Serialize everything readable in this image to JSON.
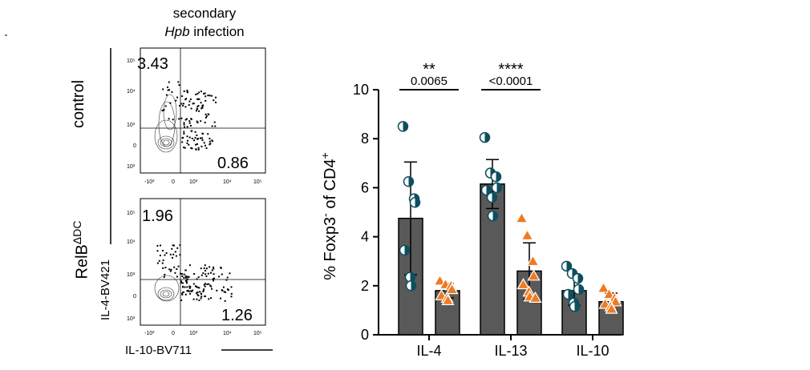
{
  "left_panel": {
    "header_line1": "secondary",
    "header_italic": "Hpb",
    "header_rest": " infection",
    "row_labels": {
      "control": "control",
      "relb_base": "RelB",
      "relb_sup": "ΔDC"
    },
    "y_axis_label": "IL-4-BV421",
    "x_axis_label": "IL-10-BV711",
    "plots": [
      {
        "name": "control",
        "upper_left": "3.43",
        "lower_right": "0.86",
        "y_ticks": [
          "10⁵",
          "10⁴",
          "10³",
          "0",
          "10³"
        ],
        "x_ticks": [
          "-10³",
          "0",
          "10³",
          "10⁴",
          "10⁵"
        ]
      },
      {
        "name": "relb",
        "upper_left": "1.96",
        "lower_right": "1.26",
        "y_ticks": [
          "10⁵",
          "10⁴",
          "10³",
          "0",
          "10³"
        ],
        "x_ticks": [
          "-10³",
          "0",
          "10³",
          "10⁴",
          "10⁵"
        ]
      }
    ]
  },
  "chart_data": {
    "type": "bar",
    "ylabel_base": "% Foxp3",
    "ylabel_sup1": "-",
    "ylabel_mid": " of CD4",
    "ylabel_sup2": "+",
    "ylim": [
      0,
      10
    ],
    "y_ticks": [
      0,
      2,
      4,
      6,
      8,
      10
    ],
    "categories": [
      "IL-4",
      "IL-13",
      "IL-10"
    ],
    "series": [
      {
        "name": "control",
        "marker": "half-filled circle",
        "color": "#0d4f5f",
        "means": [
          4.75,
          6.15,
          1.8
        ],
        "sd": [
          2.3,
          1.0,
          0.6
        ],
        "points": [
          [
            8.5,
            6.25,
            5.55,
            5.4,
            3.45,
            2.35,
            2.0
          ],
          [
            8.05,
            6.6,
            6.45,
            6.0,
            5.9,
            5.6,
            4.85
          ],
          [
            2.8,
            2.5,
            2.3,
            1.85,
            1.65,
            1.3,
            1.15
          ]
        ]
      },
      {
        "name": "RelBΔDC",
        "marker": "triangle",
        "color": "#f07a21",
        "means": [
          1.8,
          2.6,
          1.35
        ],
        "sd": [
          0.3,
          1.15,
          0.35
        ],
        "points": [
          [
            2.2,
            2.05,
            2.0,
            1.85,
            1.6,
            1.5,
            1.4
          ],
          [
            4.75,
            4.05,
            3.0,
            2.4,
            2.05,
            1.75,
            1.55,
            1.5
          ],
          [
            1.9,
            1.65,
            1.5,
            1.35,
            1.25,
            1.15,
            1.05
          ]
        ]
      }
    ],
    "bar_color": "#595959",
    "significance": [
      {
        "category": "IL-4",
        "stars": "**",
        "p": "0.0065"
      },
      {
        "category": "IL-13",
        "stars": "****",
        "p": "<0.0001"
      }
    ]
  }
}
